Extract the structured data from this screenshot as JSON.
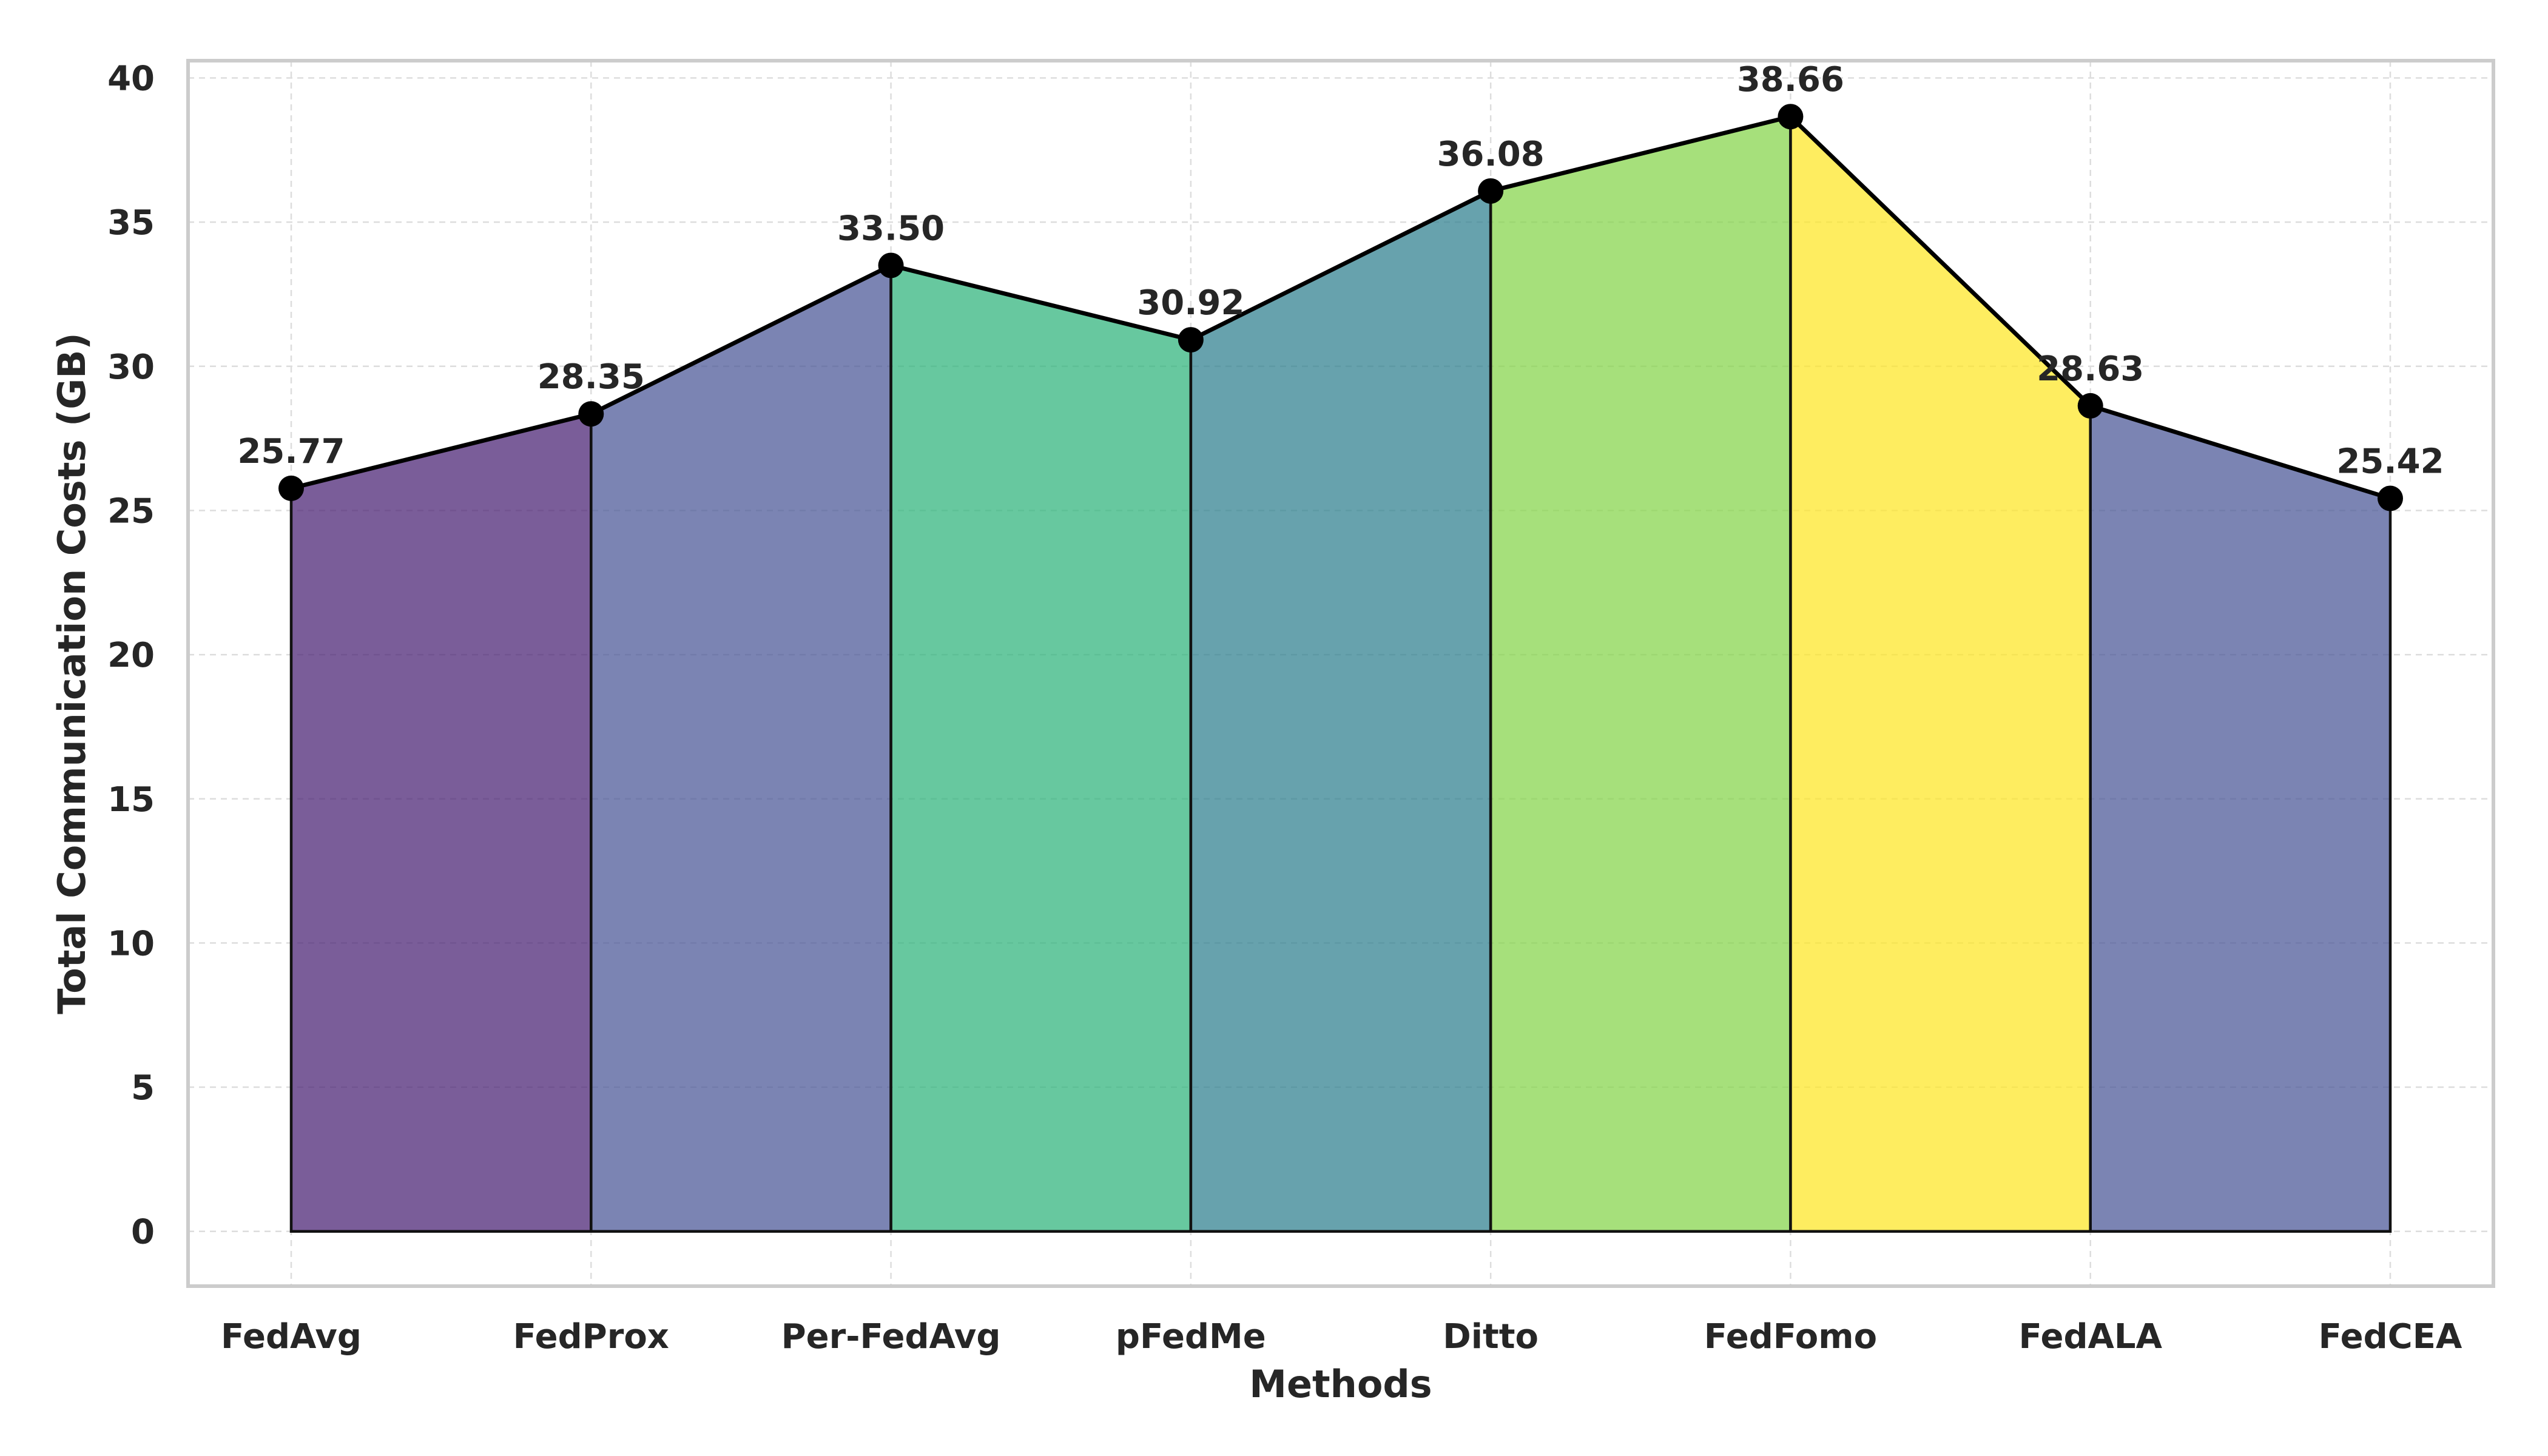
{
  "chart_data": {
    "type": "area",
    "title": "",
    "xlabel": "Methods",
    "ylabel": "Total Communication Costs (GB)",
    "categories": [
      "FedAvg",
      "FedProx",
      "Per-FedAvg",
      "pFedMe",
      "Ditto",
      "FedFomo",
      "FedALA",
      "FedCEA"
    ],
    "values": [
      25.77,
      28.35,
      33.5,
      30.92,
      36.08,
      38.66,
      28.63,
      25.42
    ],
    "data_labels": [
      "25.77",
      "28.35",
      "33.50",
      "30.92",
      "36.08",
      "38.66",
      "28.63",
      "25.42"
    ],
    "segment_colors": [
      "#482173",
      "#4a5797",
      "#2fb47c",
      "#2e7f8e",
      "#85d54a",
      "#fde725",
      "#4a5797"
    ],
    "ylim": [
      -1.9,
      40.6
    ],
    "yticks": [
      0,
      5,
      10,
      15,
      20,
      25,
      30,
      35,
      40
    ],
    "grid": true,
    "legend": "none"
  }
}
